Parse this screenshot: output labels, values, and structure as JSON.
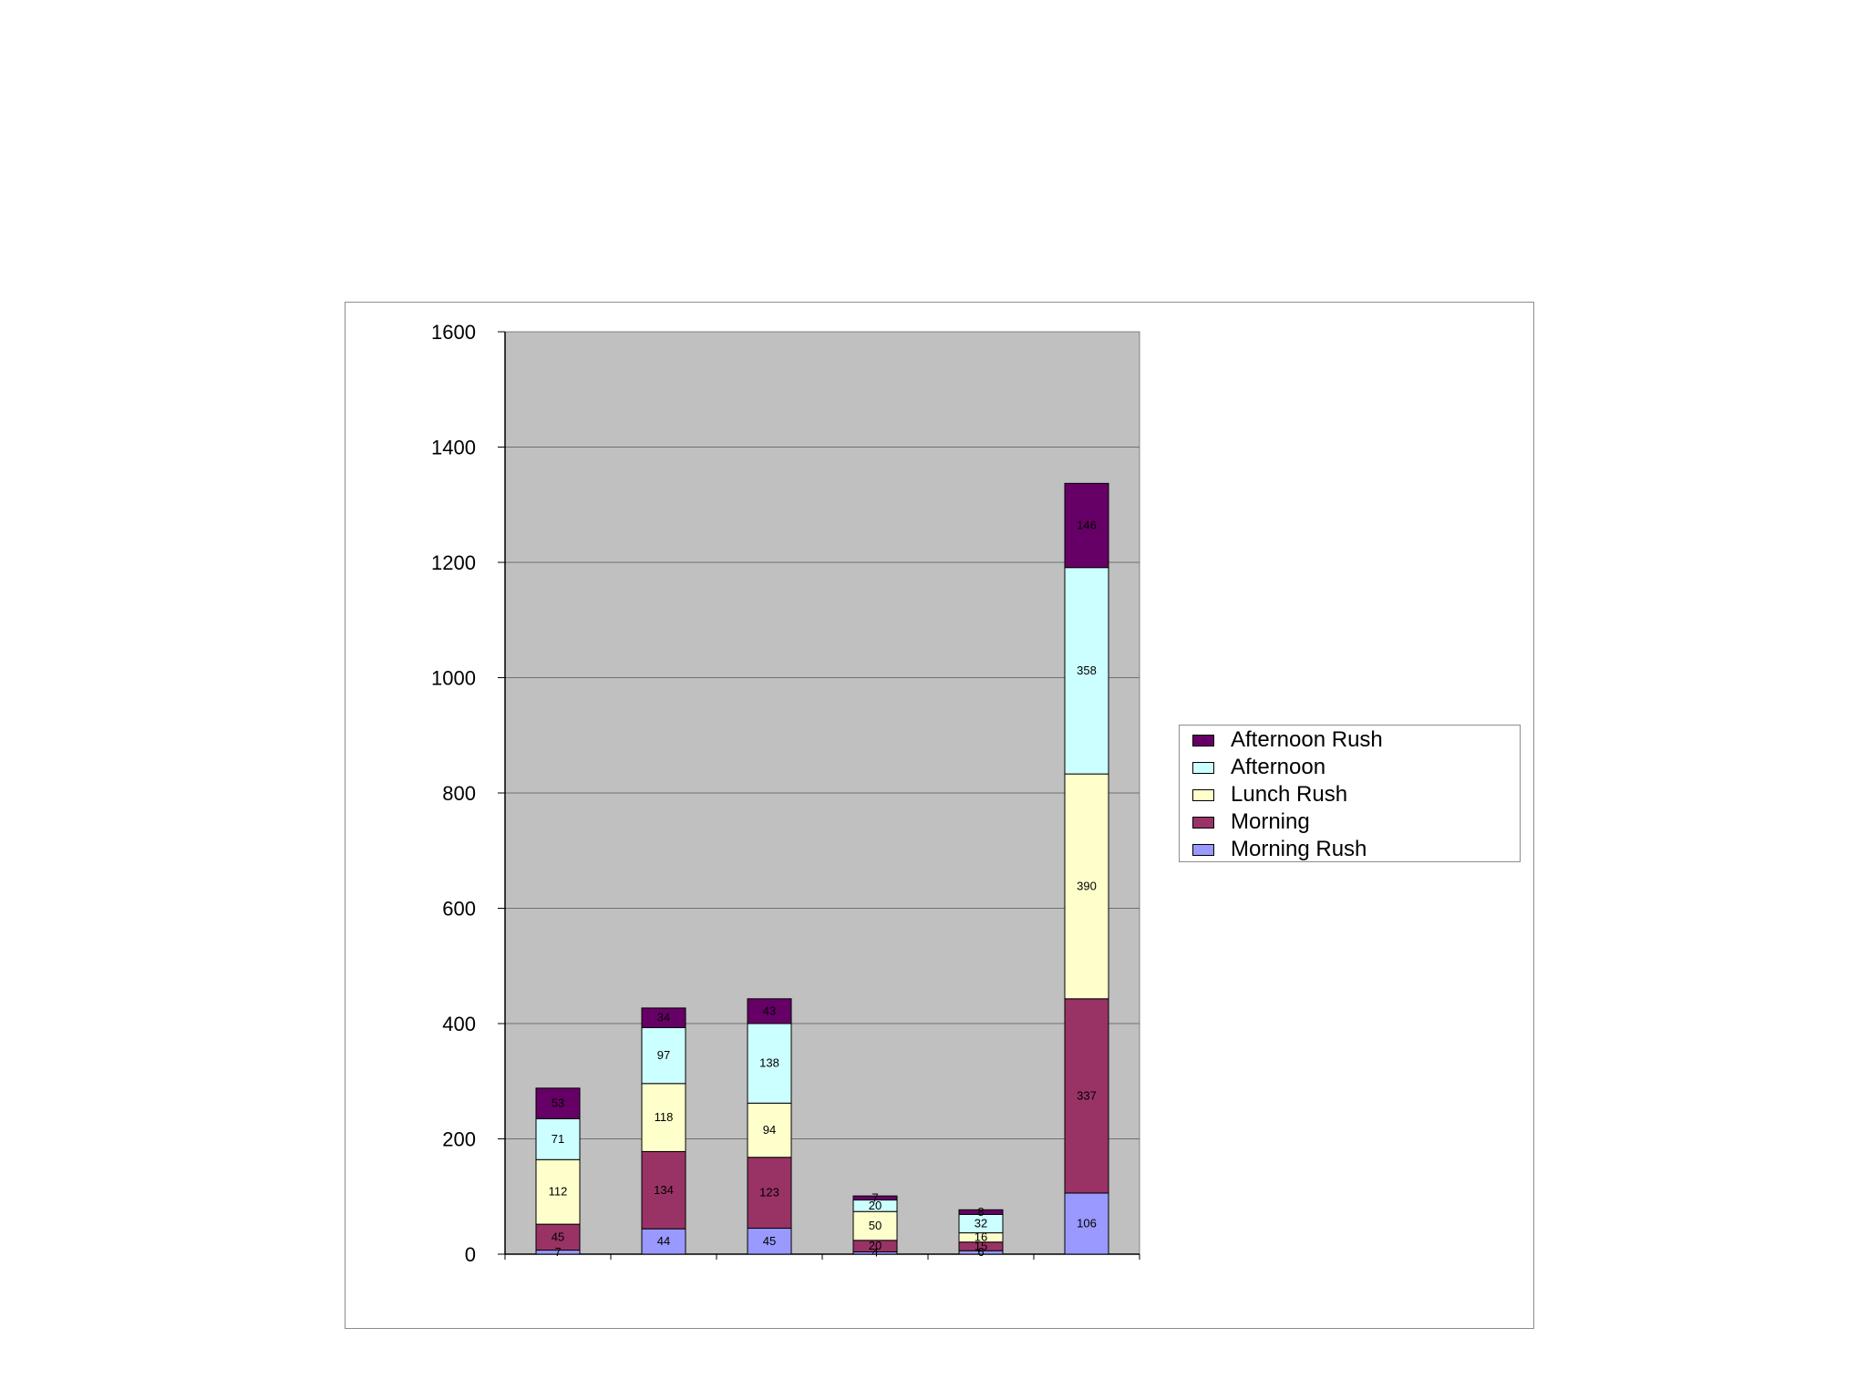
{
  "chart_data": {
    "type": "bar",
    "stacked": true,
    "title": "",
    "xlabel": "",
    "ylabel": "",
    "ylim": [
      0,
      1600
    ],
    "yticks": [
      0,
      200,
      400,
      600,
      800,
      1000,
      1200,
      1400,
      1600
    ],
    "grid": true,
    "legend_position": "right",
    "plot_background": "#c0c0c0",
    "categories": [
      "",
      "",
      "",
      "",
      "",
      ""
    ],
    "series": [
      {
        "name": "Morning Rush",
        "color": "#9999ff",
        "values": [
          7,
          44,
          45,
          4,
          6,
          106
        ]
      },
      {
        "name": "Morning",
        "color": "#993366",
        "values": [
          45,
          134,
          123,
          20,
          15,
          337
        ]
      },
      {
        "name": "Lunch Rush",
        "color": "#ffffcc",
        "values": [
          112,
          118,
          94,
          50,
          16,
          390
        ]
      },
      {
        "name": "Afternoon",
        "color": "#ccffff",
        "values": [
          71,
          97,
          138,
          20,
          32,
          358
        ]
      },
      {
        "name": "Afternoon Rush",
        "color": "#660066",
        "values": [
          53,
          34,
          43,
          7,
          8,
          146
        ]
      }
    ],
    "legend_order": [
      "Afternoon Rush",
      "Afternoon",
      "Lunch Rush",
      "Morning",
      "Morning Rush"
    ]
  }
}
